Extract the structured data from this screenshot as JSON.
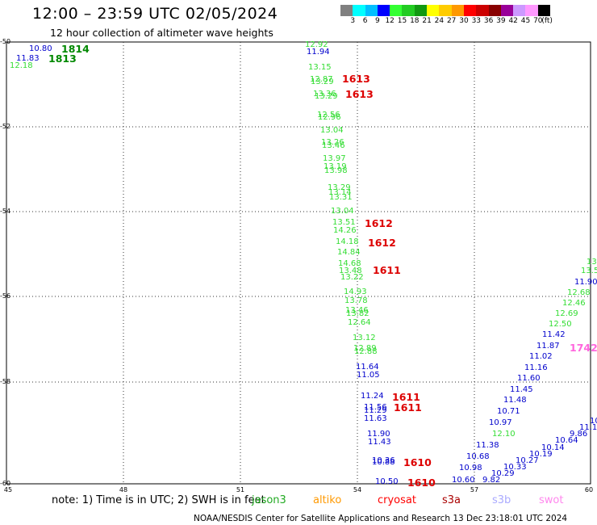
{
  "header": {
    "title": "12:00 – 23:59 UTC 02/05/2024",
    "subtitle": "12 hour collection of altimeter wave heights"
  },
  "color_scale": {
    "colors": [
      "#808080",
      "#00ffff",
      "#00bfff",
      "#0000ff",
      "#33ff33",
      "#22cc22",
      "#119911",
      "#ffff00",
      "#ffcc00",
      "#ff9900",
      "#ff0000",
      "#cc0000",
      "#880000",
      "#990099",
      "#cc99ff",
      "#ff99ff",
      "#000000"
    ],
    "labels": [
      "3",
      "6",
      "9",
      "12",
      "15",
      "18",
      "21",
      "24",
      "27",
      "30",
      "33",
      "36",
      "39",
      "42",
      "45",
      "70",
      "(ft)"
    ]
  },
  "map": {
    "lat_labels": [
      "-50",
      "-52",
      "-54",
      "-56",
      "-58",
      "-60"
    ],
    "lon_labels": [
      "45",
      "48",
      "51",
      "54",
      "57",
      "60"
    ]
  },
  "legend": {
    "note": "note:  1) Time is in UTC;  2) SWH is in feet",
    "satellites": [
      {
        "name": "jason3",
        "color": "#22aa22"
      },
      {
        "name": "altiko",
        "color": "#ff9900"
      },
      {
        "name": "cryosat",
        "color": "#ff0000"
      },
      {
        "name": "s3a",
        "color": "#aa0000"
      },
      {
        "name": "s3b",
        "color": "#aaaaff"
      },
      {
        "name": "swot",
        "color": "#ff88ee"
      }
    ]
  },
  "footer": "NOAA/NESDIS Center for Satellite Applications and Research    13 Dec 23:18:01 UTC 2024",
  "wave_heights": [
    {
      "text": "10.80",
      "color": "#0000cc"
    },
    {
      "text": "11.83",
      "color": "#0000cc"
    },
    {
      "text": "12.18",
      "color": "#33dd33"
    },
    {
      "text": "12.92",
      "color": "#33dd33"
    },
    {
      "text": "11.94",
      "color": "#0000cc"
    },
    {
      "text": "13.15",
      "color": "#33dd33"
    },
    {
      "text": "12.87",
      "color": "#33dd33"
    },
    {
      "text": "13.29",
      "color": "#33dd33"
    },
    {
      "text": "13.36",
      "color": "#33dd33"
    },
    {
      "text": "13.29",
      "color": "#33dd33"
    },
    {
      "text": "12.56",
      "color": "#33dd33"
    },
    {
      "text": "12.96",
      "color": "#33dd33"
    },
    {
      "text": "13.04",
      "color": "#33dd33"
    },
    {
      "text": "13.26",
      "color": "#33dd33"
    },
    {
      "text": "13.46",
      "color": "#33dd33"
    },
    {
      "text": "13.97",
      "color": "#33dd33"
    },
    {
      "text": "13.19",
      "color": "#33dd33"
    },
    {
      "text": "13.98",
      "color": "#33dd33"
    },
    {
      "text": "13.29",
      "color": "#33dd33"
    },
    {
      "text": "13.14",
      "color": "#33dd33"
    },
    {
      "text": "13.31",
      "color": "#33dd33"
    },
    {
      "text": "13.04",
      "color": "#33dd33"
    },
    {
      "text": "13.51",
      "color": "#33dd33"
    },
    {
      "text": "14.26",
      "color": "#33dd33"
    },
    {
      "text": "14.18",
      "color": "#33dd33"
    },
    {
      "text": "14.84",
      "color": "#33dd33"
    },
    {
      "text": "14.68",
      "color": "#33dd33"
    },
    {
      "text": "13.48",
      "color": "#33dd33"
    },
    {
      "text": "13.22",
      "color": "#33dd33"
    },
    {
      "text": "14.93",
      "color": "#33dd33"
    },
    {
      "text": "13.78",
      "color": "#33dd33"
    },
    {
      "text": "13.46",
      "color": "#33dd33"
    },
    {
      "text": "13.82",
      "color": "#33dd33"
    },
    {
      "text": "12.64",
      "color": "#33dd33"
    },
    {
      "text": "13.12",
      "color": "#33dd33"
    },
    {
      "text": "12.89",
      "color": "#33dd33"
    },
    {
      "text": "12.88",
      "color": "#33dd33"
    },
    {
      "text": "11.64",
      "color": "#0000cc"
    },
    {
      "text": "11.05",
      "color": "#0000cc"
    },
    {
      "text": "11.24",
      "color": "#0000cc"
    },
    {
      "text": "11.56",
      "color": "#0000cc"
    },
    {
      "text": "11.29",
      "color": "#0000cc"
    },
    {
      "text": "11.63",
      "color": "#0000cc"
    },
    {
      "text": "11.90",
      "color": "#0000cc"
    },
    {
      "text": "11.43",
      "color": "#0000cc"
    },
    {
      "text": "10.36",
      "color": "#0000cc"
    },
    {
      "text": "10.88",
      "color": "#0000cc"
    },
    {
      "text": "10.50",
      "color": "#0000cc"
    },
    {
      "text": "13.",
      "color": "#33dd33"
    },
    {
      "text": "13.5",
      "color": "#33dd33"
    },
    {
      "text": "11.90",
      "color": "#0000cc"
    },
    {
      "text": "12.68",
      "color": "#33dd33"
    },
    {
      "text": "12.46",
      "color": "#33dd33"
    },
    {
      "text": "12.69",
      "color": "#33dd33"
    },
    {
      "text": "12.50",
      "color": "#33dd33"
    },
    {
      "text": "11.42",
      "color": "#0000cc"
    },
    {
      "text": "11.87",
      "color": "#0000cc"
    },
    {
      "text": "11.02",
      "color": "#0000cc"
    },
    {
      "text": "11.16",
      "color": "#0000cc"
    },
    {
      "text": "11.60",
      "color": "#0000cc"
    },
    {
      "text": "11.45",
      "color": "#0000cc"
    },
    {
      "text": "11.48",
      "color": "#0000cc"
    },
    {
      "text": "10.71",
      "color": "#0000cc"
    },
    {
      "text": "10.97",
      "color": "#0000cc"
    },
    {
      "text": "12.10",
      "color": "#33dd33"
    },
    {
      "text": "11.38",
      "color": "#0000cc"
    },
    {
      "text": "10.68",
      "color": "#0000cc"
    },
    {
      "text": "10.98",
      "color": "#0000cc"
    },
    {
      "text": "10.60",
      "color": "#0000cc"
    },
    {
      "text": "9.82",
      "color": "#0000cc"
    },
    {
      "text": "10.29",
      "color": "#0000cc"
    },
    {
      "text": "10.33",
      "color": "#0000cc"
    },
    {
      "text": "10.27",
      "color": "#0000cc"
    },
    {
      "text": "10.19",
      "color": "#0000cc"
    },
    {
      "text": "10.14",
      "color": "#0000cc"
    },
    {
      "text": "10.64",
      "color": "#0000cc"
    },
    {
      "text": "9.86",
      "color": "#0000cc"
    },
    {
      "text": "11.1",
      "color": "#0000cc"
    },
    {
      "text": "10",
      "color": "#0000cc"
    }
  ],
  "pass_labels": [
    {
      "text": "1814",
      "color": "#008800"
    },
    {
      "text": "1813",
      "color": "#008800"
    },
    {
      "text": "1613",
      "color": "#dd0000"
    },
    {
      "text": "1613",
      "color": "#dd0000"
    },
    {
      "text": "1612",
      "color": "#dd0000"
    },
    {
      "text": "1612",
      "color": "#dd0000"
    },
    {
      "text": "1611",
      "color": "#dd0000"
    },
    {
      "text": "1611",
      "color": "#dd0000"
    },
    {
      "text": "1611",
      "color": "#dd0000"
    },
    {
      "text": "1610",
      "color": "#dd0000"
    },
    {
      "text": "1610",
      "color": "#dd0000"
    },
    {
      "text": "1742",
      "color": "#ff66dd"
    }
  ]
}
